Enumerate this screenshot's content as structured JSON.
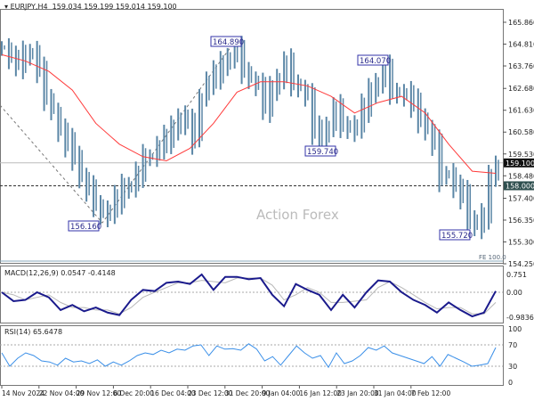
{
  "header": {
    "symbol": "EURJPY,H4",
    "ohlc": "159.034 159.199 159.014 159.100"
  },
  "watermark": "Action Forex",
  "colors": {
    "bars": "#5a86a6",
    "ma": "#ff3b3b",
    "macd": "#1a1a8c",
    "signal": "#b8b8b8",
    "rsi": "#3a8fe8",
    "label_box": "#3333aa"
  },
  "chart_data": [
    {
      "type": "bar",
      "name": "price",
      "title": "EURJPY,H4",
      "ylim": [
        154.25,
        165.86
      ],
      "yticks": [
        "165.860",
        "164.810",
        "163.760",
        "162.680",
        "161.630",
        "160.580",
        "159.530",
        "158.480",
        "157.400",
        "156.350",
        "155.300",
        "154.250"
      ],
      "close": [
        164.6,
        164.1,
        163.9,
        164.2,
        164.4,
        163.5,
        162.3,
        161.5,
        160.6,
        160.0,
        159.5,
        158.3,
        157.8,
        157.2,
        156.5,
        156.8,
        157.4,
        157.8,
        158.0,
        158.6,
        159.3,
        159.4,
        159.9,
        160.3,
        160.6,
        161.3,
        161.0,
        160.2,
        162.3,
        163.0,
        163.4,
        163.7,
        164.2,
        164.5,
        163.6,
        163.0,
        162.8,
        161.8,
        162.5,
        163.2,
        163.9,
        163.0,
        162.6,
        162.3,
        160.6,
        160.2,
        160.9,
        161.7,
        161.0,
        160.6,
        160.9,
        161.8,
        162.4,
        163.0,
        163.6,
        162.6,
        162.3,
        162.4,
        161.9,
        161.3,
        160.6,
        160.0,
        158.4,
        158.6,
        157.9,
        157.5,
        156.4,
        156.0,
        156.6,
        158.3,
        159.1
      ],
      "ma": [
        164.3,
        164.0,
        163.5,
        162.6,
        161.0,
        160.0,
        159.4,
        159.2,
        159.8,
        161.0,
        162.5,
        163.0,
        163.0,
        162.8,
        162.3,
        161.5,
        162.0,
        162.3,
        161.5,
        160.0,
        158.7,
        158.6
      ],
      "price_labels": [
        "164.890",
        "156.160",
        "159.740",
        "164.070",
        "155.720"
      ],
      "current_price": "159.100",
      "level": "158.000",
      "fe_label": "FE 100.0"
    },
    {
      "type": "line",
      "title": "MACD(12,26,9) 0.0547 -0.4148",
      "ylim": [
        -1.05,
        0.8
      ],
      "yticks": [
        "0.751",
        "0.00",
        "-0.9836"
      ],
      "macd": [
        0.0,
        -0.35,
        -0.3,
        0.0,
        -0.2,
        -0.7,
        -0.5,
        -0.75,
        -0.6,
        -0.8,
        -0.9,
        -0.3,
        0.1,
        0.05,
        0.4,
        0.45,
        0.35,
        0.75,
        0.1,
        0.65,
        0.65,
        0.55,
        0.6,
        -0.1,
        -0.55,
        0.35,
        0.1,
        -0.1,
        -0.7,
        -0.1,
        -0.6,
        0.0,
        0.5,
        0.45,
        0.0,
        -0.3,
        -0.5,
        -0.8,
        -0.4,
        -0.7,
        -0.95,
        -0.8,
        0.05
      ],
      "signal": [
        0.0,
        -0.1,
        -0.3,
        -0.2,
        -0.1,
        -0.4,
        -0.6,
        -0.6,
        -0.7,
        -0.7,
        -0.85,
        -0.6,
        -0.2,
        0.0,
        0.2,
        0.4,
        0.4,
        0.5,
        0.45,
        0.4,
        0.6,
        0.6,
        0.6,
        0.3,
        -0.3,
        -0.1,
        0.2,
        0.0,
        -0.4,
        -0.4,
        -0.35,
        -0.3,
        0.2,
        0.45,
        0.2,
        -0.1,
        -0.4,
        -0.65,
        -0.6,
        -0.6,
        -0.85,
        -0.85,
        -0.4
      ]
    },
    {
      "type": "line",
      "title": "RSI(14) 65.6478",
      "ylim": [
        0,
        100
      ],
      "yticks": [
        "100",
        "70",
        "30",
        "0"
      ],
      "rsi": [
        55,
        30,
        45,
        55,
        50,
        40,
        38,
        32,
        45,
        38,
        40,
        35,
        42,
        30,
        38,
        32,
        40,
        50,
        55,
        52,
        60,
        55,
        62,
        60,
        68,
        70,
        50,
        68,
        62,
        63,
        60,
        72,
        62,
        40,
        48,
        32,
        50,
        68,
        55,
        45,
        50,
        28,
        55,
        35,
        40,
        50,
        65,
        60,
        68,
        55,
        50,
        45,
        40,
        35,
        48,
        30,
        52,
        45,
        38,
        30,
        32,
        35,
        65
      ]
    }
  ],
  "xticks": [
    "14 Nov 2024",
    "22 Nov 04:00",
    "29 Nov 12:00",
    "6 Dec 20:00",
    "16 Dec 04:00",
    "23 Dec 12:00",
    "31 Dec 20:00",
    "9 Jan 04:00",
    "16 Jan 12:00",
    "23 Jan 20:00",
    "31 Jan 04:00",
    "7 Feb 12:00"
  ]
}
